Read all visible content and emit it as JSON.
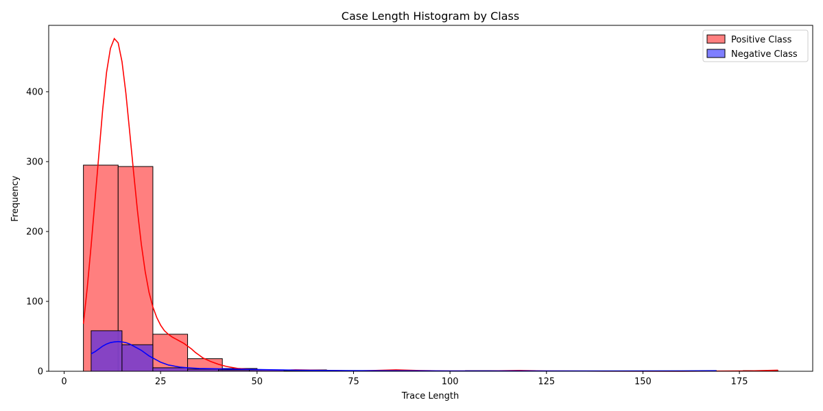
{
  "chart_data": {
    "type": "histogram",
    "title": "Case Length Histogram by Class",
    "xlabel": "Trace Length",
    "ylabel": "Frequency",
    "xlim": [
      -4,
      194
    ],
    "ylim": [
      0,
      495
    ],
    "xticks": [
      0,
      25,
      50,
      75,
      100,
      125,
      150,
      175
    ],
    "yticks": [
      0,
      100,
      200,
      300,
      400
    ],
    "grid": false,
    "legend_position": "top-right",
    "series": [
      {
        "name": "Positive Class",
        "fill": "#ff7f7f",
        "line": "#ff0000",
        "bins": [
          {
            "x0": 5,
            "x1": 14,
            "value": 295
          },
          {
            "x0": 14,
            "x1": 23,
            "value": 293
          },
          {
            "x0": 23,
            "x1": 32,
            "value": 53
          },
          {
            "x0": 32,
            "x1": 41,
            "value": 18
          },
          {
            "x0": 41,
            "x1": 50,
            "value": 4
          },
          {
            "x0": 50,
            "x1": 59,
            "value": 2
          },
          {
            "x0": 59,
            "x1": 68,
            "value": 2
          },
          {
            "x0": 68,
            "x1": 77,
            "value": 1
          },
          {
            "x0": 77,
            "x1": 86,
            "value": 1
          },
          {
            "x0": 86,
            "x1": 95,
            "value": 1
          },
          {
            "x0": 95,
            "x1": 104,
            "value": 0
          },
          {
            "x0": 104,
            "x1": 113,
            "value": 1
          },
          {
            "x0": 113,
            "x1": 122,
            "value": 1
          },
          {
            "x0": 122,
            "x1": 131,
            "value": 0
          },
          {
            "x0": 131,
            "x1": 140,
            "value": 0
          },
          {
            "x0": 140,
            "x1": 149,
            "value": 0
          },
          {
            "x0": 149,
            "x1": 158,
            "value": 0
          },
          {
            "x0": 158,
            "x1": 167,
            "value": 0
          },
          {
            "x0": 167,
            "x1": 176,
            "value": 0
          },
          {
            "x0": 176,
            "x1": 185,
            "value": 1
          }
        ],
        "kde": [
          [
            5,
            68
          ],
          [
            6,
            120
          ],
          [
            7,
            180
          ],
          [
            8,
            245
          ],
          [
            9,
            310
          ],
          [
            10,
            375
          ],
          [
            11,
            428
          ],
          [
            12,
            462
          ],
          [
            13,
            476
          ],
          [
            14,
            470
          ],
          [
            15,
            443
          ],
          [
            16,
            398
          ],
          [
            17,
            342
          ],
          [
            18,
            285
          ],
          [
            19,
            230
          ],
          [
            20,
            182
          ],
          [
            21,
            143
          ],
          [
            22,
            113
          ],
          [
            23,
            92
          ],
          [
            24,
            77
          ],
          [
            25,
            66
          ],
          [
            26,
            58
          ],
          [
            27,
            53
          ],
          [
            28,
            49
          ],
          [
            29,
            46
          ],
          [
            30,
            43
          ],
          [
            31,
            40
          ],
          [
            32,
            36
          ],
          [
            33,
            32
          ],
          [
            34,
            27
          ],
          [
            35,
            23
          ],
          [
            36,
            19
          ],
          [
            38,
            14
          ],
          [
            40,
            10
          ],
          [
            42,
            7
          ],
          [
            45,
            4
          ],
          [
            50,
            2
          ],
          [
            55,
            1
          ],
          [
            60,
            2
          ],
          [
            65,
            1.5
          ],
          [
            70,
            1
          ],
          [
            75,
            0.5
          ],
          [
            80,
            1
          ],
          [
            86,
            2
          ],
          [
            92,
            1
          ],
          [
            100,
            0.4
          ],
          [
            110,
            0.5
          ],
          [
            118,
            1.2
          ],
          [
            125,
            0.5
          ],
          [
            140,
            0.2
          ],
          [
            160,
            0.1
          ],
          [
            170,
            0.3
          ],
          [
            178,
            0.6
          ],
          [
            185,
            1.5
          ]
        ]
      },
      {
        "name": "Negative Class",
        "fill": "#7f7fff",
        "line": "#0000ff",
        "bins": [
          {
            "x0": 7,
            "x1": 15,
            "value": 58
          },
          {
            "x0": 15,
            "x1": 23,
            "value": 38
          },
          {
            "x0": 23,
            "x1": 32,
            "value": 5
          },
          {
            "x0": 32,
            "x1": 40,
            "value": 3
          },
          {
            "x0": 40,
            "x1": 48,
            "value": 2
          },
          {
            "x0": 48,
            "x1": 57,
            "value": 2
          },
          {
            "x0": 57,
            "x1": 65,
            "value": 1
          },
          {
            "x0": 65,
            "x1": 74,
            "value": 0
          },
          {
            "x0": 74,
            "x1": 82,
            "value": 0
          },
          {
            "x0": 82,
            "x1": 90,
            "value": 0
          },
          {
            "x0": 90,
            "x1": 99,
            "value": 0
          },
          {
            "x0": 99,
            "x1": 107,
            "value": 0
          },
          {
            "x0": 107,
            "x1": 115,
            "value": 0
          },
          {
            "x0": 115,
            "x1": 124,
            "value": 0
          },
          {
            "x0": 124,
            "x1": 132,
            "value": 0
          },
          {
            "x0": 132,
            "x1": 140,
            "value": 0
          },
          {
            "x0": 140,
            "x1": 149,
            "value": 0
          },
          {
            "x0": 149,
            "x1": 157,
            "value": 0
          },
          {
            "x0": 157,
            "x1": 165,
            "value": 0
          },
          {
            "x0": 165,
            "x1": 169,
            "value": 1
          }
        ],
        "kde": [
          [
            7,
            25
          ],
          [
            8,
            28
          ],
          [
            9,
            32
          ],
          [
            10,
            36
          ],
          [
            11,
            39
          ],
          [
            12,
            41
          ],
          [
            13,
            42
          ],
          [
            14,
            42.5
          ],
          [
            15,
            42
          ],
          [
            16,
            41
          ],
          [
            17,
            39
          ],
          [
            18,
            36
          ],
          [
            19,
            33
          ],
          [
            20,
            30
          ],
          [
            21,
            26
          ],
          [
            22,
            22
          ],
          [
            23,
            19
          ],
          [
            24,
            16
          ],
          [
            25,
            13
          ],
          [
            26,
            11
          ],
          [
            27,
            9
          ],
          [
            28,
            8
          ],
          [
            30,
            6
          ],
          [
            32,
            5
          ],
          [
            35,
            4
          ],
          [
            40,
            3.5
          ],
          [
            45,
            3
          ],
          [
            50,
            2.5
          ],
          [
            55,
            2
          ],
          [
            60,
            1.5
          ],
          [
            70,
            1
          ],
          [
            80,
            0.8
          ],
          [
            100,
            0.5
          ],
          [
            120,
            0.4
          ],
          [
            140,
            0.4
          ],
          [
            160,
            0.6
          ],
          [
            169,
            0.8
          ]
        ]
      }
    ]
  }
}
